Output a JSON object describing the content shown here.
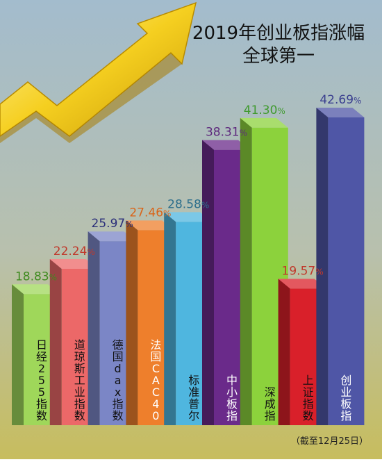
{
  "chart_data": {
    "type": "bar",
    "title_line1": "2019年创业板指涨幅",
    "title_line2": "全球第一",
    "footnote": "（截至12月25日）",
    "categories": [
      "日经255指数",
      "道琼斯工业指数",
      "德国dax指数",
      "法国CAC40",
      "标准普尔",
      "中小板指",
      "深成指",
      "上证指数",
      "创业板指"
    ],
    "value_labels": [
      "18.83%",
      "22.24%",
      "25.97%",
      "27.46%",
      "28.58%",
      "38.31%",
      "41.30%",
      "19.57%",
      "42.69%"
    ],
    "values": [
      18.83,
      22.24,
      25.97,
      27.46,
      28.58,
      38.31,
      41.3,
      19.57,
      42.69
    ],
    "unit": "%",
    "colors": {
      "front": [
        "#9fd75a",
        "#ec6868",
        "#7b86c6",
        "#ee7f2c",
        "#4fb6df",
        "#6a2a8a",
        "#8cd23c",
        "#d9202a",
        "#4f56a6"
      ],
      "label": [
        "#3e8a1e",
        "#c0392b",
        "#2b2f7a",
        "#d9651a",
        "#2d6f8c",
        "#5e2a7e",
        "#3f9a2e",
        "#c0392b",
        "#3a3f8f"
      ],
      "text": [
        "#111111",
        "#111111",
        "#111111",
        "#ffffff",
        "#111111",
        "#ffffff",
        "#111111",
        "#111111",
        "#ffffff"
      ],
      "background_top": "#a3bccd",
      "background_bottom": "#c7bd5e",
      "arrow": "#f1c40f"
    }
  }
}
